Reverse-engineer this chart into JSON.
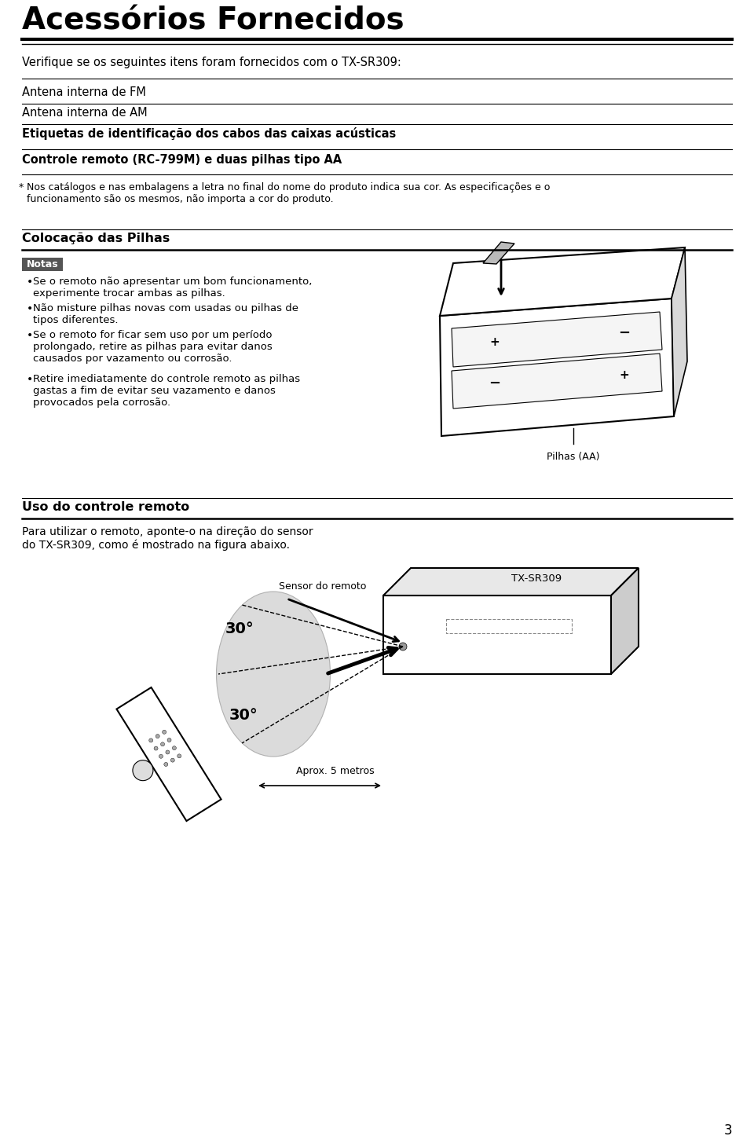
{
  "title": "Acessórios Fornecidos",
  "subtitle": "Verifique se os seguintes itens foram fornecidos com o TX-SR309:",
  "items": [
    "Antena interna de FM",
    "Antena interna de AM",
    "Etiquetas de identificação dos cabos das caixas acústicas",
    "Controle remoto (RC-799M) e duas pilhas tipo AA"
  ],
  "item_bold": [
    false,
    false,
    true,
    true
  ],
  "footnote_star": "*",
  "footnote_text": "Nos catálogos e nas embalagens a letra no final do nome do produto indica sua cor. As especificações e o\nfuncionamento são os mesmos, não importa a cor do produto.",
  "section2_title": "Colocação das Pilhas",
  "notas_label": "Notas",
  "bullet_points": [
    "Se o remoto não apresentar um bom funcionamento,\nexperimente trocar ambas as pilhas.",
    "Não misture pilhas novas com usadas ou pilhas de\ntipos diferentes.",
    "Se o remoto for ficar sem uso por um período\nprolongado, retire as pilhas para evitar danos\ncausados por vazamento ou corrosão.",
    "Retire imediatamente do controle remoto as pilhas\ngastas a fim de evitar seu vazamento e danos\nprovocados pela corrosão."
  ],
  "pilhas_label": "Pilhas (AA)",
  "section3_title": "Uso do controle remoto",
  "section3_text": "Para utilizar o remoto, aponte-o na direção do sensor\ndo TX-SR309, como é mostrado na figura abaixo.",
  "sensor_label": "Sensor do remoto",
  "txsr309_label": "TX-SR309",
  "angle_label1": "30°",
  "angle_label2": "30°",
  "aprox_label": "Aprox. 5 metros",
  "page_number": "3",
  "bg_color": "#ffffff",
  "text_color": "#000000",
  "notas_bg": "#555555",
  "notas_text": "#ffffff"
}
